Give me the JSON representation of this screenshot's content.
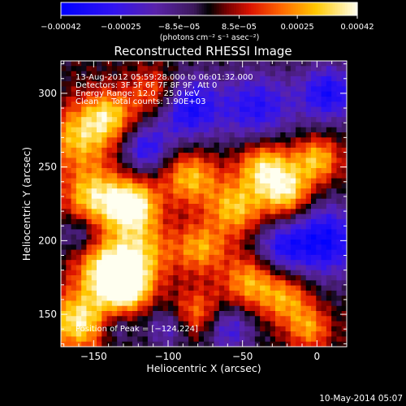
{
  "chart_data": {
    "type": "heatmap",
    "title": "Reconstructed RHESSI Image",
    "xlabel": "Heliocentric X (arcsec)",
    "ylabel": "Heliocentric Y (arcsec)",
    "xlim": [
      -172,
      20
    ],
    "ylim": [
      128,
      322
    ],
    "xticks": [
      -150,
      -100,
      -50,
      0
    ],
    "xtick_labels": [
      "−150",
      "−100",
      "−50",
      "0"
    ],
    "yticks": [
      150,
      200,
      250,
      300
    ],
    "ytick_labels": [
      "150",
      "200",
      "250",
      "300"
    ],
    "colorbar": {
      "range": [
        -0.00042,
        0.00042
      ],
      "ticks": [
        -0.00042,
        -0.00025,
        -8.5e-05,
        8.5e-05,
        0.00025,
        0.00042
      ],
      "tick_labels": [
        "−0.00042",
        "−0.00025",
        "−8.5e−05",
        "8.5e−05",
        "0.00025",
        "0.00042"
      ],
      "units_label": "(photons cm⁻² s⁻¹ asec⁻²)"
    },
    "annotations": [
      "13-Aug-2012 05:59:28.000 to 06:01:32.000",
      "Detectors: 3F 5F 6F 7F 8F 9F, Att 0",
      "Energy Range: 12.0 - 25.0 keV",
      "Clean     Total counts: 1.90E+03"
    ],
    "peak_label": "Position of Peak = [−124,224]",
    "peak": [
      -124,
      224
    ],
    "sources": [
      {
        "x": -160,
        "y": 145,
        "amp": 0.00038,
        "sigma": 14
      },
      {
        "x": -142,
        "y": 178,
        "amp": 0.00036,
        "sigma": 14
      },
      {
        "x": -128,
        "y": 168,
        "amp": 0.0004,
        "sigma": 11
      },
      {
        "x": -120,
        "y": 192,
        "amp": 0.0003,
        "sigma": 16
      },
      {
        "x": -124,
        "y": 224,
        "amp": 0.00042,
        "sigma": 12
      },
      {
        "x": -150,
        "y": 230,
        "amp": 0.00034,
        "sigma": 14
      },
      {
        "x": -160,
        "y": 270,
        "amp": 0.0003,
        "sigma": 15
      },
      {
        "x": -140,
        "y": 285,
        "amp": 0.0003,
        "sigma": 12
      },
      {
        "x": -108,
        "y": 300,
        "amp": 0.00026,
        "sigma": 12
      },
      {
        "x": -85,
        "y": 243,
        "amp": 0.0003,
        "sigma": 13
      },
      {
        "x": -78,
        "y": 195,
        "amp": 0.00026,
        "sigma": 12
      },
      {
        "x": -55,
        "y": 222,
        "amp": 0.0003,
        "sigma": 13
      },
      {
        "x": -35,
        "y": 250,
        "amp": 0.00036,
        "sigma": 13
      },
      {
        "x": -20,
        "y": 232,
        "amp": 0.00034,
        "sigma": 12
      },
      {
        "x": 0,
        "y": 255,
        "amp": 0.0003,
        "sigma": 11
      },
      {
        "x": -45,
        "y": 172,
        "amp": 0.00028,
        "sigma": 13
      },
      {
        "x": -20,
        "y": 160,
        "amp": 0.00026,
        "sigma": 12
      },
      {
        "x": -80,
        "y": 150,
        "amp": 0.00024,
        "sigma": 12
      },
      {
        "x": -5,
        "y": 140,
        "amp": 0.00024,
        "sigma": 10
      },
      {
        "x": -88,
        "y": 290,
        "amp": -0.00036,
        "sigma": 16
      },
      {
        "x": -115,
        "y": 262,
        "amp": -0.00028,
        "sigma": 11
      },
      {
        "x": -40,
        "y": 290,
        "amp": -0.0003,
        "sigma": 18
      },
      {
        "x": 8,
        "y": 300,
        "amp": -0.00034,
        "sigma": 14
      },
      {
        "x": 5,
        "y": 200,
        "amp": -0.00038,
        "sigma": 18
      },
      {
        "x": -25,
        "y": 195,
        "amp": -0.00024,
        "sigma": 12
      },
      {
        "x": -60,
        "y": 140,
        "amp": -0.00026,
        "sigma": 12
      },
      {
        "x": -100,
        "y": 140,
        "amp": -0.0002,
        "sigma": 10
      },
      {
        "x": -160,
        "y": 205,
        "amp": -0.00016,
        "sigma": 9
      },
      {
        "x": -135,
        "y": 140,
        "amp": -0.00014,
        "sigma": 8
      }
    ]
  },
  "footer": {
    "date": "10-May-2014 05:07"
  }
}
